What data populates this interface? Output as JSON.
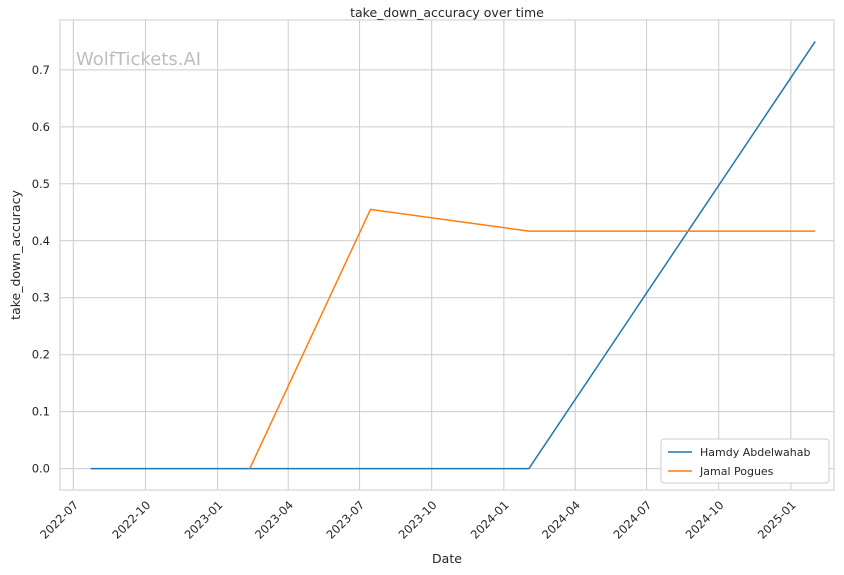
{
  "watermark": "WolfTickets.AI",
  "chart_data": {
    "type": "line",
    "title": "take_down_accuracy over time",
    "xlabel": "Date",
    "ylabel": "take_down_accuracy",
    "x_is_date": true,
    "xlim": [
      "2022-06-14",
      "2025-02-25"
    ],
    "ylim": [
      -0.0375,
      0.7875
    ],
    "x_ticks": [
      "2022-07",
      "2022-10",
      "2023-01",
      "2023-04",
      "2023-07",
      "2023-10",
      "2024-01",
      "2024-04",
      "2024-07",
      "2024-10",
      "2025-01"
    ],
    "y_ticks": [
      0.0,
      0.1,
      0.2,
      0.3,
      0.4,
      0.5,
      0.6,
      0.7
    ],
    "y_tick_labels": [
      "0.0",
      "0.1",
      "0.2",
      "0.3",
      "0.4",
      "0.5",
      "0.6",
      "0.7"
    ],
    "grid": true,
    "legend_position": "lower right",
    "series": [
      {
        "name": "Hamdy Abdelwahab",
        "color": "#1f77b4",
        "x": [
          "2022-07-23",
          "2024-02-02",
          "2025-02-01"
        ],
        "y": [
          0.0,
          0.0,
          0.75
        ]
      },
      {
        "name": "Jamal Pogues",
        "color": "#ff7f0e",
        "x": [
          "2023-02-11",
          "2023-07-15",
          "2024-02-02",
          "2025-02-01"
        ],
        "y": [
          0.0,
          0.455,
          0.417,
          0.417
        ]
      }
    ]
  }
}
